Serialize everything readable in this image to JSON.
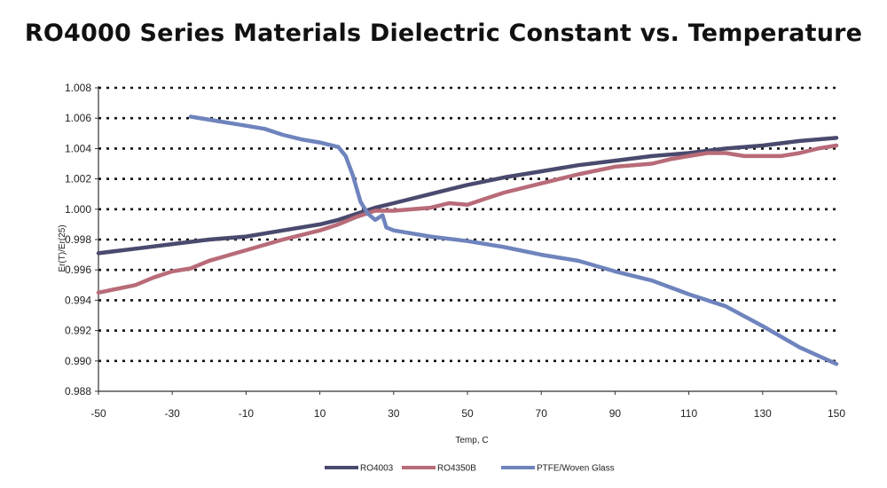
{
  "chart_data": {
    "type": "line",
    "title": "RO4000 Series Materials Dielectric Constant vs. Temperature",
    "xlabel": "Temp, C",
    "ylabel": "Er(T)/Er(25)",
    "xlim": [
      -50,
      150
    ],
    "ylim": [
      0.988,
      1.008
    ],
    "xticks": [
      -50,
      -30,
      -10,
      10,
      30,
      50,
      70,
      90,
      110,
      130,
      150
    ],
    "xtick_labels": [
      "-50",
      "-30",
      "-10",
      "10",
      "30",
      "50",
      "70",
      "90",
      "110",
      "130",
      "150"
    ],
    "yticks": [
      0.988,
      0.99,
      0.992,
      0.994,
      0.996,
      0.998,
      1.0,
      1.002,
      1.004,
      1.006,
      1.008
    ],
    "ytick_labels": [
      "0.988",
      "0.990",
      "0.992",
      "0.994",
      "0.996",
      "0.998",
      "1.000",
      "1.002",
      "1.004",
      "1.006",
      "1.008"
    ],
    "grid": "horizontal dotted",
    "legend_position": "bottom",
    "series": [
      {
        "name": "RO4003",
        "color": "#4a4a6e",
        "x": [
          -50,
          -40,
          -30,
          -20,
          -10,
          0,
          10,
          15,
          20,
          25,
          30,
          40,
          50,
          60,
          70,
          80,
          90,
          100,
          110,
          120,
          130,
          140,
          150
        ],
        "y": [
          0.9971,
          0.9974,
          0.9977,
          0.998,
          0.9982,
          0.9986,
          0.999,
          0.9993,
          0.9997,
          1.0001,
          1.0004,
          1.001,
          1.0016,
          1.0021,
          1.0025,
          1.0029,
          1.0032,
          1.0035,
          1.0037,
          1.004,
          1.0042,
          1.0045,
          1.0047
        ]
      },
      {
        "name": "RO4350B",
        "color": "#b86b78",
        "x": [
          -50,
          -40,
          -35,
          -30,
          -25,
          -20,
          -10,
          0,
          10,
          15,
          20,
          25,
          30,
          40,
          45,
          50,
          55,
          60,
          70,
          80,
          90,
          100,
          105,
          110,
          115,
          120,
          125,
          130,
          135,
          140,
          145,
          150
        ],
        "y": [
          0.9945,
          0.995,
          0.9955,
          0.9959,
          0.9961,
          0.9966,
          0.9973,
          0.998,
          0.9986,
          0.999,
          0.9995,
          0.9999,
          0.9999,
          1.0001,
          1.0004,
          1.0003,
          1.0007,
          1.0011,
          1.0017,
          1.0023,
          1.0028,
          1.003,
          1.0033,
          1.0035,
          1.0037,
          1.0037,
          1.0035,
          1.0035,
          1.0035,
          1.0037,
          1.004,
          1.0042
        ]
      },
      {
        "name": "PTFE/Woven Glass",
        "color": "#6f84bd",
        "x": [
          -25,
          -20,
          -15,
          -10,
          -5,
          0,
          5,
          10,
          15,
          17,
          19,
          21,
          23,
          25,
          27,
          28,
          30,
          40,
          50,
          60,
          70,
          80,
          90,
          100,
          110,
          120,
          130,
          140,
          150
        ],
        "y": [
          1.0061,
          1.0059,
          1.0057,
          1.0055,
          1.0053,
          1.0049,
          1.0046,
          1.0044,
          1.0041,
          1.0035,
          1.0022,
          1.0005,
          0.9997,
          0.9993,
          0.9996,
          0.9988,
          0.9986,
          0.9982,
          0.9979,
          0.9975,
          0.997,
          0.9966,
          0.9959,
          0.9953,
          0.9944,
          0.9936,
          0.9923,
          0.9909,
          0.9898
        ]
      }
    ]
  }
}
